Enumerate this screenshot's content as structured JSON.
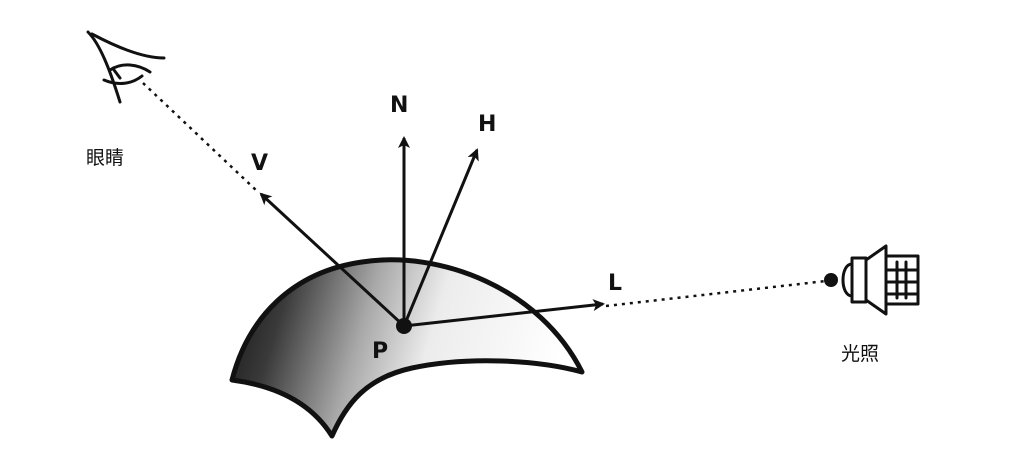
{
  "labels": {
    "eye": "眼睛",
    "light": "光照",
    "point": "P",
    "normal": "N",
    "half": "H",
    "view": "V",
    "light_dir": "L"
  },
  "icons": {
    "eye": "eye-icon",
    "light": "spotlight-icon"
  },
  "colors": {
    "ink": "#111111",
    "surface_dark": "#1a1a1a",
    "surface_light": "#ffffff",
    "background": "#ffffff"
  }
}
